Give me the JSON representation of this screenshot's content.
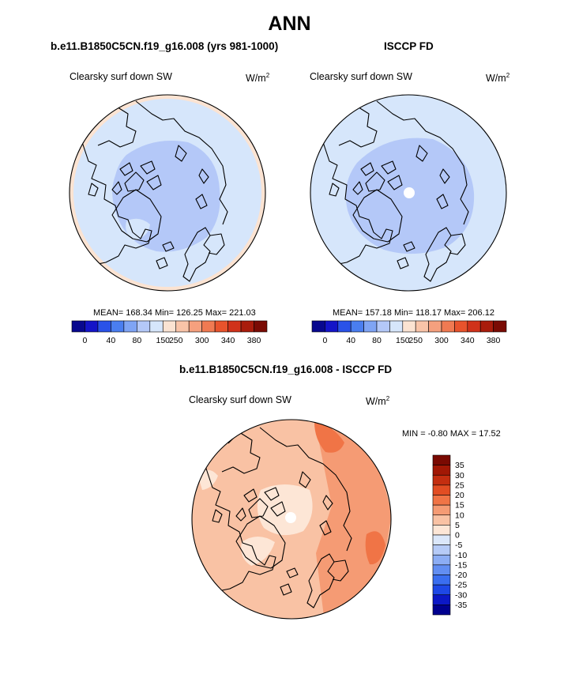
{
  "page": {
    "title": "ANN",
    "diff_title": "b.e11.B1850C5CN.f19_g16.008 - ISCCP FD",
    "min_max_label": "MIN =  -0.80 MAX =  17.52"
  },
  "colors": {
    "abs_scale": [
      "#08088e",
      "#1414c8",
      "#2a52e8",
      "#4a7ef0",
      "#7fa4f4",
      "#b4c8f8",
      "#d6e6fb",
      "#fbe3d2",
      "#f9c4a8",
      "#f5a07e",
      "#f07a52",
      "#e8532c",
      "#d0321a",
      "#a91c0c",
      "#7a0b04"
    ],
    "diff_scale": [
      "#00008f",
      "#0c18c6",
      "#1e48e6",
      "#3a6ef0",
      "#628ef2",
      "#8cadf4",
      "#b6cbf7",
      "#dbe7fa",
      "#fde6d6",
      "#f9c2a4",
      "#f59b74",
      "#f07446",
      "#e24d23",
      "#c42e10",
      "#a21805",
      "#7a0a02"
    ]
  },
  "chart_data": [
    {
      "type": "heatmap",
      "title": "b.e11.B1850C5CN.f19_g16.008 (yrs 981-1000)",
      "variable": "Clearsky surf down SW",
      "units": "W/m",
      "units_exp": "2",
      "projection": "north polar stereographic",
      "stats": "MEAN= 168.34  Min= 126.25  Max= 221.03",
      "mean": 168.34,
      "min": 126.25,
      "max": 221.03,
      "colorbar_ticks": [
        "0",
        "40",
        "80",
        "150",
        "250",
        "300",
        "340",
        "380"
      ]
    },
    {
      "type": "heatmap",
      "title": "ISCCP FD",
      "variable": "Clearsky surf down SW",
      "units": "W/m",
      "units_exp": "2",
      "projection": "north polar stereographic",
      "stats": "MEAN= 157.18  Min= 118.17  Max= 206.12",
      "mean": 157.18,
      "min": 118.17,
      "max": 206.12,
      "colorbar_ticks": [
        "0",
        "40",
        "80",
        "150",
        "250",
        "300",
        "340",
        "380"
      ]
    },
    {
      "type": "heatmap",
      "title": "b.e11.B1850C5CN.f19_g16.008 - ISCCP FD",
      "variable": "Clearsky surf down SW",
      "units": "W/m",
      "units_exp": "2",
      "projection": "north polar stereographic",
      "min": -0.8,
      "max": 17.52,
      "colorbar_ticks": [
        "35",
        "30",
        "25",
        "20",
        "15",
        "10",
        "5",
        "0",
        "-5",
        "-10",
        "-15",
        "-20",
        "-25",
        "-30",
        "-35"
      ]
    }
  ]
}
